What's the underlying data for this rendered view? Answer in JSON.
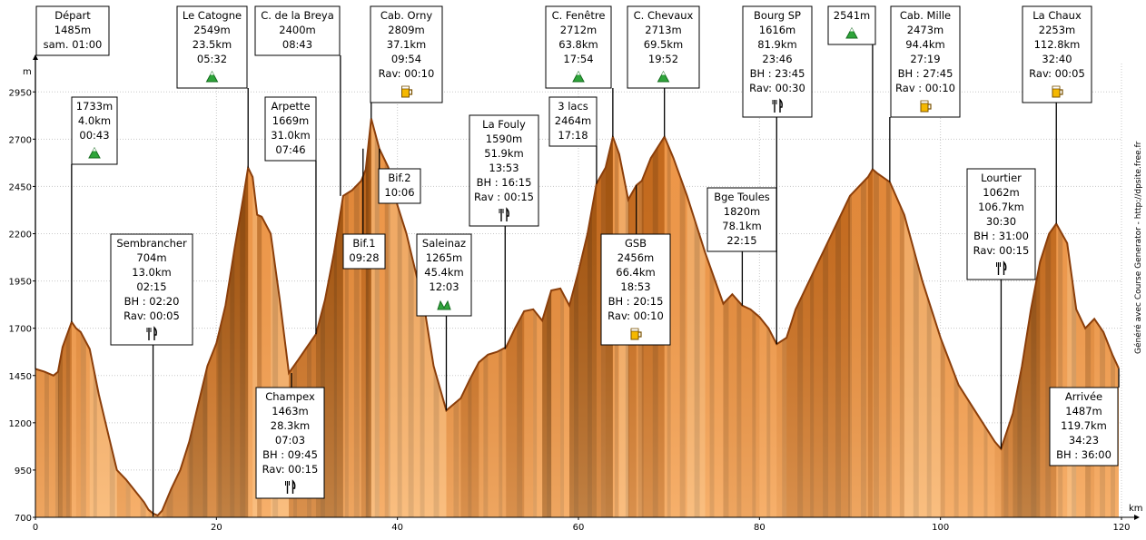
{
  "chart_data": {
    "type": "area",
    "xlabel": "km",
    "ylabel": "m",
    "xlim": [
      0,
      120
    ],
    "ylim": [
      700,
      3100
    ],
    "x_ticks": [
      0,
      20,
      40,
      60,
      80,
      100,
      120
    ],
    "y_ticks": [
      700,
      950,
      1200,
      1450,
      1700,
      1950,
      2200,
      2450,
      2700,
      2950
    ],
    "grid": true,
    "credit": "Généré avec Course Generator - http://dpsite.free.fr",
    "colors": {
      "fill_dark": "#a0520e",
      "fill_light": "#f5a154",
      "outline": "#8b3e0a",
      "grid": "#c8c8c8"
    },
    "profile": [
      [
        0,
        1485
      ],
      [
        1,
        1470
      ],
      [
        2,
        1450
      ],
      [
        2.5,
        1470
      ],
      [
        3,
        1600
      ],
      [
        4,
        1733
      ],
      [
        4.5,
        1700
      ],
      [
        5,
        1680
      ],
      [
        6,
        1590
      ],
      [
        7,
        1350
      ],
      [
        8,
        1150
      ],
      [
        9,
        950
      ],
      [
        10,
        900
      ],
      [
        11,
        840
      ],
      [
        12,
        780
      ],
      [
        12.5,
        740
      ],
      [
        13,
        720
      ],
      [
        13.5,
        710
      ],
      [
        14,
        735
      ],
      [
        15,
        850
      ],
      [
        16,
        950
      ],
      [
        17,
        1100
      ],
      [
        18,
        1300
      ],
      [
        19,
        1500
      ],
      [
        20,
        1620
      ],
      [
        21,
        1820
      ],
      [
        22,
        2120
      ],
      [
        23,
        2400
      ],
      [
        23.5,
        2549
      ],
      [
        24,
        2500
      ],
      [
        24.5,
        2300
      ],
      [
        25,
        2290
      ],
      [
        26,
        2200
      ],
      [
        27,
        1850
      ],
      [
        28,
        1463
      ],
      [
        29,
        1530
      ],
      [
        30,
        1600
      ],
      [
        31,
        1669
      ],
      [
        32,
        1850
      ],
      [
        33,
        2100
      ],
      [
        34,
        2400
      ],
      [
        35,
        2430
      ],
      [
        36,
        2480
      ],
      [
        36.5,
        2540
      ],
      [
        37.1,
        2809
      ],
      [
        38,
        2650
      ],
      [
        39,
        2550
      ],
      [
        40,
        2350
      ],
      [
        41,
        2200
      ],
      [
        42,
        2000
      ],
      [
        43,
        1800
      ],
      [
        44,
        1500
      ],
      [
        45.4,
        1265
      ],
      [
        46,
        1290
      ],
      [
        47,
        1330
      ],
      [
        48,
        1430
      ],
      [
        49,
        1520
      ],
      [
        50,
        1560
      ],
      [
        51,
        1575
      ],
      [
        52,
        1600
      ],
      [
        53,
        1700
      ],
      [
        54,
        1790
      ],
      [
        55,
        1800
      ],
      [
        56,
        1740
      ],
      [
        57,
        1900
      ],
      [
        58,
        1910
      ],
      [
        59,
        1820
      ],
      [
        60,
        2000
      ],
      [
        61,
        2200
      ],
      [
        62,
        2464
      ],
      [
        63,
        2550
      ],
      [
        63.8,
        2712
      ],
      [
        64.5,
        2620
      ],
      [
        65.5,
        2380
      ],
      [
        66.4,
        2456
      ],
      [
        67,
        2480
      ],
      [
        68,
        2600
      ],
      [
        69.5,
        2713
      ],
      [
        70.5,
        2600
      ],
      [
        72,
        2400
      ],
      [
        74,
        2100
      ],
      [
        76,
        1830
      ],
      [
        77,
        1880
      ],
      [
        78.1,
        1820
      ],
      [
        79,
        1800
      ],
      [
        80,
        1760
      ],
      [
        81,
        1700
      ],
      [
        81.9,
        1616
      ],
      [
        83,
        1650
      ],
      [
        84,
        1800
      ],
      [
        86,
        2000
      ],
      [
        88,
        2200
      ],
      [
        90,
        2400
      ],
      [
        92,
        2500
      ],
      [
        92.5,
        2541
      ],
      [
        93,
        2520
      ],
      [
        94.4,
        2473
      ],
      [
        96,
        2300
      ],
      [
        98,
        1950
      ],
      [
        100,
        1650
      ],
      [
        102,
        1400
      ],
      [
        104,
        1250
      ],
      [
        106,
        1100
      ],
      [
        106.7,
        1062
      ],
      [
        108,
        1250
      ],
      [
        109,
        1500
      ],
      [
        110,
        1800
      ],
      [
        111,
        2050
      ],
      [
        112,
        2200
      ],
      [
        112.8,
        2253
      ],
      [
        114,
        2150
      ],
      [
        115,
        1800
      ],
      [
        116,
        1700
      ],
      [
        117,
        1750
      ],
      [
        118,
        1680
      ],
      [
        119,
        1560
      ],
      [
        119.7,
        1487
      ]
    ],
    "stripes": [
      [
        1,
        1.5
      ],
      [
        2.2,
        2.6
      ],
      [
        3.4,
        3.8
      ],
      [
        5,
        5.6
      ],
      [
        6.4,
        6.8
      ],
      [
        8.2,
        8.8
      ],
      [
        10,
        10.5
      ],
      [
        11.6,
        12.2
      ],
      [
        14.5,
        15.2
      ],
      [
        16.8,
        17.4
      ],
      [
        18.5,
        19
      ],
      [
        20.2,
        20.6
      ],
      [
        21.5,
        22
      ],
      [
        22.6,
        23.2
      ],
      [
        24.5,
        25
      ],
      [
        26.2,
        26.8
      ],
      [
        28.5,
        28.9
      ],
      [
        30,
        30.5
      ],
      [
        31.5,
        32
      ],
      [
        33,
        33.3
      ],
      [
        34.2,
        34.6
      ],
      [
        35.2,
        35.8
      ],
      [
        36.5,
        36.8
      ],
      [
        37.5,
        38
      ],
      [
        38.6,
        39.2
      ],
      [
        40,
        40.5
      ],
      [
        41.2,
        41.8
      ],
      [
        42.5,
        43
      ],
      [
        44,
        44.6
      ],
      [
        46.2,
        46.8
      ],
      [
        47.8,
        48.2
      ],
      [
        49.5,
        50
      ],
      [
        51.2,
        51.6
      ],
      [
        53.2,
        53.8
      ],
      [
        55,
        55.4
      ],
      [
        56.5,
        57
      ],
      [
        58,
        58.4
      ],
      [
        59.5,
        60
      ],
      [
        61,
        61.5
      ],
      [
        62.5,
        63
      ],
      [
        64,
        64.4
      ],
      [
        65.2,
        65.6
      ],
      [
        66.6,
        67.2
      ],
      [
        68.2,
        68.8
      ],
      [
        69.8,
        70.2
      ],
      [
        71.2,
        71.8
      ],
      [
        72.8,
        73.4
      ],
      [
        74.5,
        75
      ],
      [
        76,
        76.6
      ],
      [
        77.5,
        78
      ],
      [
        79.2,
        79.6
      ],
      [
        80.8,
        81.2
      ],
      [
        82.5,
        83
      ],
      [
        84.2,
        84.8
      ],
      [
        85.6,
        86
      ],
      [
        87,
        87.6
      ],
      [
        88.4,
        89
      ],
      [
        89.8,
        90.2
      ],
      [
        91.2,
        91.8
      ],
      [
        92.6,
        93.2
      ],
      [
        94,
        94.6
      ],
      [
        95.5,
        96
      ],
      [
        97,
        97.6
      ],
      [
        98.5,
        99
      ],
      [
        100,
        100.5
      ],
      [
        101.5,
        102
      ],
      [
        103,
        103.6
      ],
      [
        104.8,
        105.2
      ],
      [
        107,
        107.5
      ],
      [
        108.5,
        109
      ],
      [
        110,
        110.6
      ],
      [
        111.6,
        112.2
      ],
      [
        113,
        113.5
      ],
      [
        114.5,
        115
      ],
      [
        116,
        116.6
      ],
      [
        117.6,
        118.2
      ],
      [
        118.8,
        119.3
      ]
    ],
    "annotations": [
      {
        "x": 0,
        "y": 1485,
        "lines": [
          "Départ",
          "1485m",
          "sam. 01:00"
        ],
        "box": "top",
        "icon": ""
      },
      {
        "x": 4.0,
        "y": 1733,
        "lines": [
          "1733m",
          "4.0km",
          "00:43"
        ],
        "box": "top",
        "icon": "summit"
      },
      {
        "x": 13.0,
        "y": 704,
        "lines": [
          "Sembrancher",
          "704m",
          "13.0km",
          "02:15",
          "BH : 02:20",
          "Rav: 00:05"
        ],
        "box": "top",
        "icon": "food"
      },
      {
        "x": 23.5,
        "y": 2549,
        "lines": [
          "Le Catogne",
          "2549m",
          "23.5km",
          "05:32"
        ],
        "box": "top",
        "icon": "summit"
      },
      {
        "x": 28.3,
        "y": 1463,
        "lines": [
          "Champex",
          "1463m",
          "28.3km",
          "07:03",
          "BH : 09:45",
          "Rav: 00:15"
        ],
        "box": "bottom",
        "icon": "food"
      },
      {
        "x": 31.0,
        "y": 1669,
        "lines": [
          "Arpette",
          "1669m",
          "31.0km",
          "07:46"
        ],
        "box": "top",
        "icon": ""
      },
      {
        "x": 33.7,
        "y": 2400,
        "lines": [
          "C. de la Breya",
          "2400m",
          "08:43"
        ],
        "box": "top",
        "icon": ""
      },
      {
        "x": 36.2,
        "y": 2650,
        "lines": [
          "Bif.1",
          "09:28"
        ],
        "box": "top",
        "icon": ""
      },
      {
        "x": 37.1,
        "y": 2809,
        "lines": [
          "Cab. Orny",
          "2809m",
          "37.1km",
          "09:54",
          "Rav: 00:10"
        ],
        "box": "top",
        "icon": "drink"
      },
      {
        "x": 38.0,
        "y": 2650,
        "lines": [
          "Bif.2",
          "10:06"
        ],
        "box": "top",
        "icon": ""
      },
      {
        "x": 45.4,
        "y": 1265,
        "lines": [
          "Saleinaz",
          "1265m",
          "45.4km",
          "12:03"
        ],
        "box": "top",
        "icon": "hut"
      },
      {
        "x": 51.9,
        "y": 1590,
        "lines": [
          "La Fouly",
          "1590m",
          "51.9km",
          "13:53",
          "BH : 16:15",
          "Rav : 00:15"
        ],
        "box": "top",
        "icon": "food"
      },
      {
        "x": 62.0,
        "y": 2464,
        "lines": [
          "3 lacs",
          "2464m",
          "17:18"
        ],
        "box": "top",
        "icon": ""
      },
      {
        "x": 63.8,
        "y": 2712,
        "lines": [
          "C. Fenêtre",
          "2712m",
          "63.8km",
          "17:54"
        ],
        "box": "top",
        "icon": "summit"
      },
      {
        "x": 66.4,
        "y": 2456,
        "lines": [
          "GSB",
          "2456m",
          "66.4km",
          "18:53",
          "BH : 20:15",
          "Rav: 00:10"
        ],
        "box": "top",
        "icon": "drink"
      },
      {
        "x": 69.5,
        "y": 2713,
        "lines": [
          "C. Chevaux",
          "2713m",
          "69.5km",
          "19:52"
        ],
        "box": "top",
        "icon": "summit"
      },
      {
        "x": 78.1,
        "y": 1820,
        "lines": [
          "Bge Toules",
          "1820m",
          "78.1km",
          "22:15"
        ],
        "box": "top",
        "icon": ""
      },
      {
        "x": 81.9,
        "y": 1616,
        "lines": [
          "Bourg SP",
          "1616m",
          "81.9km",
          "23:46",
          "BH : 23:45",
          "Rav: 00:30"
        ],
        "box": "top",
        "icon": "food"
      },
      {
        "x": 92.5,
        "y": 2541,
        "lines": [
          "2541m"
        ],
        "box": "top",
        "icon": "summit"
      },
      {
        "x": 94.4,
        "y": 2473,
        "lines": [
          "Cab. Mille",
          "2473m",
          "94.4km",
          "27:19",
          "BH : 27:45",
          "Rav : 00:10"
        ],
        "box": "top",
        "icon": "drink"
      },
      {
        "x": 106.7,
        "y": 1062,
        "lines": [
          "Lourtier",
          "1062m",
          "106.7km",
          "30:30",
          "BH : 31:00",
          "Rav: 00:15"
        ],
        "box": "top",
        "icon": "food"
      },
      {
        "x": 112.8,
        "y": 2253,
        "lines": [
          "La Chaux",
          "2253m",
          "112.8km",
          "32:40",
          "Rav: 00:05"
        ],
        "box": "top",
        "icon": "drink"
      },
      {
        "x": 119.7,
        "y": 1487,
        "lines": [
          "Arrivée",
          "1487m",
          "119.7km",
          "34:23",
          "BH : 36:00"
        ],
        "box": "bottom",
        "icon": ""
      }
    ]
  }
}
